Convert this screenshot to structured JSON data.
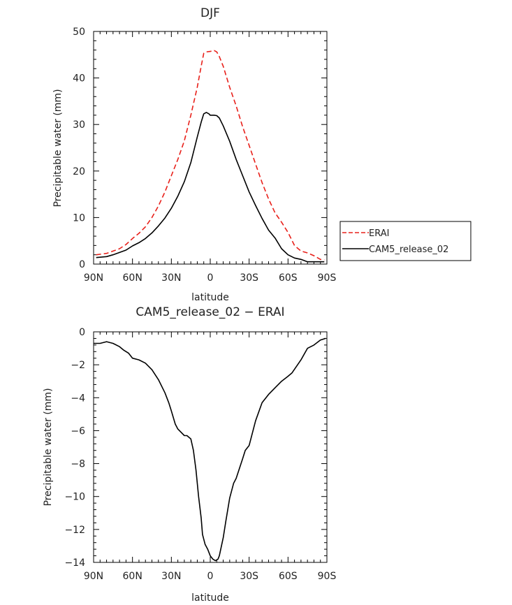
{
  "chart_data": [
    {
      "type": "line",
      "title": "DJF",
      "xlabel": "latitude",
      "ylabel": "Precipitable water (mm)",
      "xlim": [
        -90,
        90
      ],
      "ylim": [
        0,
        50
      ],
      "xticks": [
        "90N",
        "60N",
        "30N",
        "0",
        "30S",
        "60S",
        "90S"
      ],
      "yticks": [
        "0",
        "10",
        "20",
        "30",
        "40",
        "50"
      ],
      "legend": "right",
      "series": [
        {
          "name": "ERAI",
          "color": "#e8201a",
          "style": "dashed",
          "x": [
            -88,
            -80,
            -75,
            -70,
            -65,
            -60,
            -55,
            -50,
            -45,
            -40,
            -35,
            -30,
            -25,
            -20,
            -15,
            -10,
            -7,
            -5,
            -3,
            0,
            3,
            5,
            7,
            10,
            15,
            20,
            25,
            30,
            35,
            40,
            45,
            50,
            55,
            60,
            65,
            70,
            75,
            80,
            85,
            88
          ],
          "y": [
            2.0,
            2.3,
            2.8,
            3.3,
            4.2,
            5.5,
            6.6,
            8.0,
            10.0,
            12.5,
            15.5,
            19.0,
            22.5,
            26.5,
            32.0,
            38.0,
            42.5,
            45.3,
            45.6,
            45.7,
            45.9,
            45.6,
            44.6,
            42.5,
            38.0,
            34.0,
            29.5,
            25.5,
            21.5,
            17.5,
            14.0,
            11.0,
            9.0,
            6.8,
            4.0,
            2.8,
            2.4,
            1.8,
            1.0,
            0.9
          ]
        },
        {
          "name": "CAM5_release_02",
          "color": "#000000",
          "style": "solid",
          "x": [
            -88,
            -80,
            -75,
            -70,
            -65,
            -60,
            -55,
            -50,
            -45,
            -40,
            -35,
            -30,
            -25,
            -20,
            -15,
            -10,
            -7,
            -5,
            -3,
            -1,
            0,
            3,
            5,
            7,
            10,
            15,
            20,
            25,
            30,
            35,
            40,
            45,
            50,
            55,
            60,
            65,
            70,
            75,
            80,
            85,
            88
          ],
          "y": [
            1.4,
            1.6,
            2.0,
            2.5,
            3.0,
            3.9,
            4.6,
            5.5,
            6.7,
            8.2,
            9.9,
            12.0,
            14.6,
            17.7,
            21.8,
            27.3,
            30.5,
            32.3,
            32.6,
            32.3,
            32.0,
            32.0,
            31.9,
            31.4,
            29.7,
            26.4,
            22.5,
            19.0,
            15.5,
            12.6,
            9.8,
            7.3,
            5.6,
            3.3,
            2.0,
            1.3,
            1.0,
            0.5,
            0.5,
            0.5,
            0.5
          ]
        }
      ]
    },
    {
      "type": "line",
      "title": "CAM5_release_02 − ERAI",
      "xlabel": "latitude",
      "ylabel": "Precipitable water (mm)",
      "xlim": [
        -90,
        90
      ],
      "ylim": [
        -14,
        0
      ],
      "xticks": [
        "90N",
        "60N",
        "30N",
        "0",
        "30S",
        "60S",
        "90S"
      ],
      "yticks": [
        "−14",
        "−12",
        "−10",
        "−8",
        "−6",
        "−4",
        "−2",
        "0"
      ],
      "series": [
        {
          "name": "",
          "color": "#000000",
          "style": "solid",
          "x": [
            -90,
            -85,
            -80,
            -75,
            -70,
            -67,
            -63,
            -60,
            -55,
            -50,
            -45,
            -40,
            -35,
            -32,
            -30,
            -27,
            -25,
            -20,
            -18,
            -15,
            -13,
            -11,
            -9,
            -7,
            -6,
            -4,
            -2,
            0,
            2,
            4,
            6,
            7,
            10,
            12,
            15,
            18,
            20,
            25,
            27,
            30,
            35,
            40,
            45,
            50,
            55,
            60,
            63,
            70,
            75,
            80,
            85,
            89
          ],
          "y": [
            -0.7,
            -0.7,
            -0.6,
            -0.7,
            -0.9,
            -1.1,
            -1.3,
            -1.6,
            -1.7,
            -1.9,
            -2.3,
            -2.9,
            -3.7,
            -4.3,
            -4.8,
            -5.6,
            -5.9,
            -6.3,
            -6.3,
            -6.5,
            -7.2,
            -8.4,
            -10.0,
            -11.3,
            -12.3,
            -12.9,
            -13.2,
            -13.6,
            -13.8,
            -13.9,
            -13.8,
            -13.6,
            -12.5,
            -11.5,
            -10.1,
            -9.2,
            -8.9,
            -7.7,
            -7.2,
            -6.9,
            -5.4,
            -4.3,
            -3.8,
            -3.4,
            -3.0,
            -2.7,
            -2.5,
            -1.7,
            -1.0,
            -0.8,
            -0.5,
            -0.4
          ]
        }
      ]
    }
  ]
}
